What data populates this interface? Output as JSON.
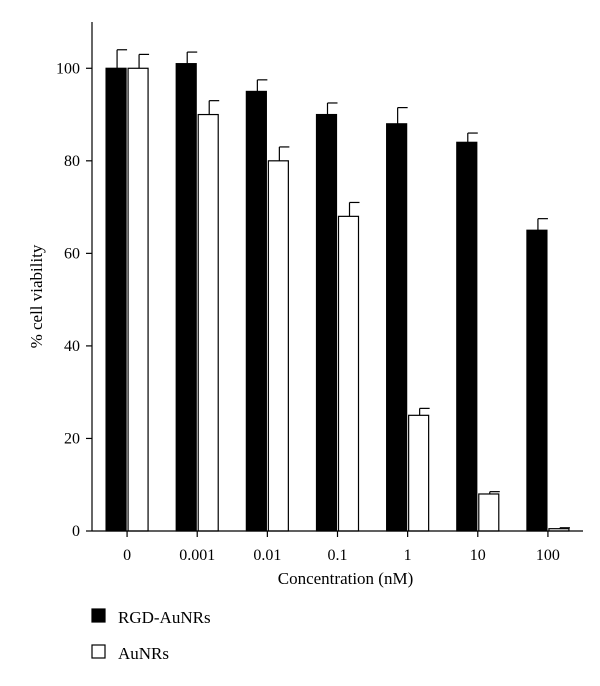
{
  "chart_data": {
    "type": "bar",
    "title": "",
    "xlabel": "Concentration (nM)",
    "ylabel": "% cell viability",
    "categories": [
      "0",
      "0.001",
      "0.01",
      "0.1",
      "1",
      "10",
      "100"
    ],
    "ylim": [
      0,
      110
    ],
    "yticks": [
      0,
      20,
      40,
      60,
      80,
      100
    ],
    "grid": false,
    "legend_position": "bottom-left",
    "series": [
      {
        "name": "RGD-AuNRs",
        "color": "#000000",
        "fill": "solid",
        "values": [
          100,
          101,
          95,
          90,
          88,
          84,
          65
        ],
        "errors": [
          4,
          2.5,
          2.5,
          2.5,
          3.5,
          2,
          2.5
        ]
      },
      {
        "name": "AuNRs",
        "color": "#ffffff",
        "fill": "outline",
        "values": [
          100,
          90,
          80,
          68,
          25,
          8,
          0.5
        ],
        "errors": [
          3,
          3,
          3,
          3,
          1.5,
          0.5,
          0.2
        ]
      }
    ]
  }
}
